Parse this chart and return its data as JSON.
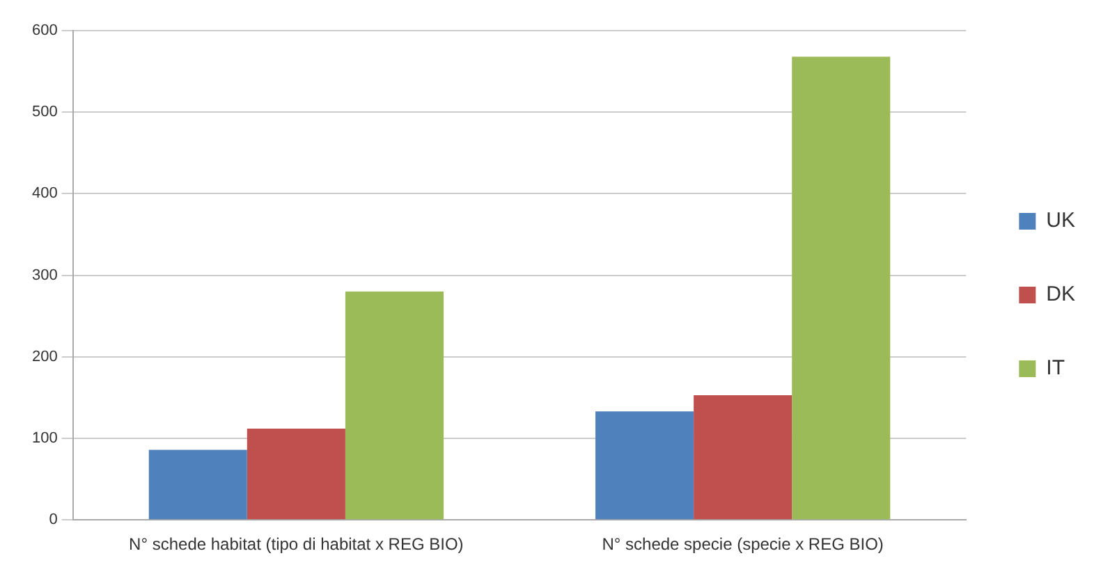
{
  "chart_data": {
    "type": "bar",
    "categories": [
      "N° schede habitat (tipo di habitat x REG BIO)",
      "N° schede specie (specie x REG BIO)"
    ],
    "series": [
      {
        "name": "UK",
        "color": "#4f81bd",
        "values": [
          86,
          133
        ]
      },
      {
        "name": "DK",
        "color": "#c0504d",
        "values": [
          112,
          153
        ]
      },
      {
        "name": "IT",
        "color": "#9bbb59",
        "values": [
          280,
          568
        ]
      }
    ],
    "ylim": [
      0,
      600
    ],
    "yticks": [
      0,
      100,
      200,
      300,
      400,
      500,
      600
    ],
    "grid": "y",
    "legend": "right"
  }
}
